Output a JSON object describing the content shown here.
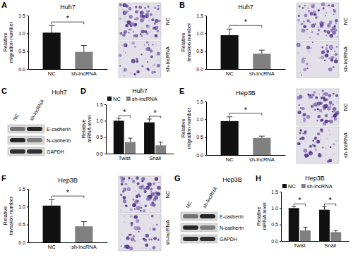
{
  "chart_data": [
    {
      "panel": "A",
      "type": "bar",
      "title": "Huh7",
      "y_label": "Relative migration number",
      "categories": [
        "NC",
        "sh-lncRNA"
      ],
      "values": [
        1.02,
        0.48
      ],
      "errors": [
        0.2,
        0.18
      ],
      "colors": [
        "#111111",
        "#808080"
      ],
      "ylim": [
        0,
        1.5
      ],
      "yticks": [
        {
          "value": 0,
          "label": "0.0"
        },
        {
          "value": 0.5,
          "label": "0.5"
        },
        {
          "value": 1,
          "label": "1.0"
        },
        {
          "value": 1.5,
          "label": "1.5"
        }
      ],
      "annotations": [
        "*"
      ],
      "image_labels": [
        "NC",
        "sh-lncRNA"
      ]
    },
    {
      "panel": "B",
      "type": "bar",
      "title": "Huh7",
      "y_label": "Relative invasion number",
      "categories": [
        "NC",
        "sh-lncRNA"
      ],
      "values": [
        0.95,
        0.43
      ],
      "errors": [
        0.17,
        0.1
      ],
      "colors": [
        "#111111",
        "#808080"
      ],
      "ylim": [
        0,
        1.5
      ],
      "yticks": [
        {
          "value": 0,
          "label": "0.0"
        },
        {
          "value": 0.5,
          "label": "0.5"
        },
        {
          "value": 1,
          "label": "1.0"
        },
        {
          "value": 1.5,
          "label": "1.5"
        }
      ],
      "annotations": [
        "*"
      ],
      "image_labels": [
        "NC",
        "sh-lncRNA"
      ]
    },
    {
      "panel": "C",
      "type": "blot",
      "title": "Huh7",
      "lanes": [
        "NC",
        "sh-lncRNA"
      ],
      "bands": [
        "E-cadherin",
        "N-cadherin",
        "GAPDH"
      ]
    },
    {
      "panel": "D",
      "type": "bar",
      "title": "Huh7",
      "y_label": "Relative mRNA level",
      "categories": [
        "Twist",
        "Snail"
      ],
      "series": [
        {
          "name": "NC",
          "color": "#111111",
          "values": [
            1.0,
            0.95
          ],
          "errors": [
            0.07,
            0.1
          ]
        },
        {
          "name": "sh-lncRNA",
          "color": "#808080",
          "values": [
            0.35,
            0.25
          ],
          "errors": [
            0.12,
            0.1
          ]
        }
      ],
      "ylim": [
        0,
        1.5
      ],
      "yticks": [
        {
          "value": 0,
          "label": "0.0"
        },
        {
          "value": 0.5,
          "label": "0.5"
        },
        {
          "value": 1,
          "label": "1.0"
        },
        {
          "value": 1.5,
          "label": "1.5"
        }
      ],
      "legend": "top-left",
      "annotations": [
        "*",
        "*"
      ]
    },
    {
      "panel": "E",
      "type": "bar",
      "title": "Hep3B",
      "y_label": "Relative migration number",
      "categories": [
        "NC",
        "sh-lncRNA"
      ],
      "values": [
        0.95,
        0.48
      ],
      "errors": [
        0.12,
        0.05
      ],
      "colors": [
        "#111111",
        "#808080"
      ],
      "ylim": [
        0,
        1.5
      ],
      "yticks": [
        {
          "value": 0,
          "label": "0.0"
        },
        {
          "value": 0.5,
          "label": "0.5"
        },
        {
          "value": 1,
          "label": "1.0"
        },
        {
          "value": 1.5,
          "label": "1.5"
        }
      ],
      "annotations": [
        "*"
      ],
      "image_labels": [
        "NC",
        "sh-lncRNA"
      ]
    },
    {
      "panel": "F",
      "type": "bar",
      "title": "Hep3B",
      "y_label": "Relative invasion number",
      "categories": [
        "NC",
        "sh-lncRNA"
      ],
      "values": [
        1.03,
        0.45
      ],
      "errors": [
        0.17,
        0.13
      ],
      "colors": [
        "#111111",
        "#808080"
      ],
      "ylim": [
        0,
        1.5
      ],
      "yticks": [
        {
          "value": 0,
          "label": "0.0"
        },
        {
          "value": 0.5,
          "label": "0.5"
        },
        {
          "value": 1,
          "label": "1.0"
        },
        {
          "value": 1.5,
          "label": "1.5"
        }
      ],
      "annotations": [
        "*"
      ],
      "image_labels": [
        "NC",
        "sh-lncRNA"
      ]
    },
    {
      "panel": "G",
      "type": "blot",
      "title": "Hep3B",
      "lanes": [
        "NC",
        "sh-lncRNA"
      ],
      "bands": [
        "E-cadherin",
        "N-cadherin",
        "GAPDH"
      ]
    },
    {
      "panel": "H",
      "type": "bar",
      "title": "Hep3B",
      "y_label": "Relative mRNA level",
      "categories": [
        "Twist",
        "Snail"
      ],
      "series": [
        {
          "name": "NC",
          "color": "#111111",
          "values": [
            1.0,
            0.95
          ],
          "errors": [
            0.04,
            0.09
          ]
        },
        {
          "name": "sh-lncRNA",
          "color": "#808080",
          "values": [
            0.32,
            0.27
          ],
          "errors": [
            0.1,
            0.05
          ]
        }
      ],
      "ylim": [
        0,
        1.5
      ],
      "yticks": [
        {
          "value": 0,
          "label": "0.0"
        },
        {
          "value": 0.5,
          "label": "0.5"
        },
        {
          "value": 1,
          "label": "1.0"
        },
        {
          "value": 1.5,
          "label": "1.5"
        }
      ],
      "legend": "top-left",
      "annotations": [
        "*",
        "*"
      ]
    }
  ]
}
